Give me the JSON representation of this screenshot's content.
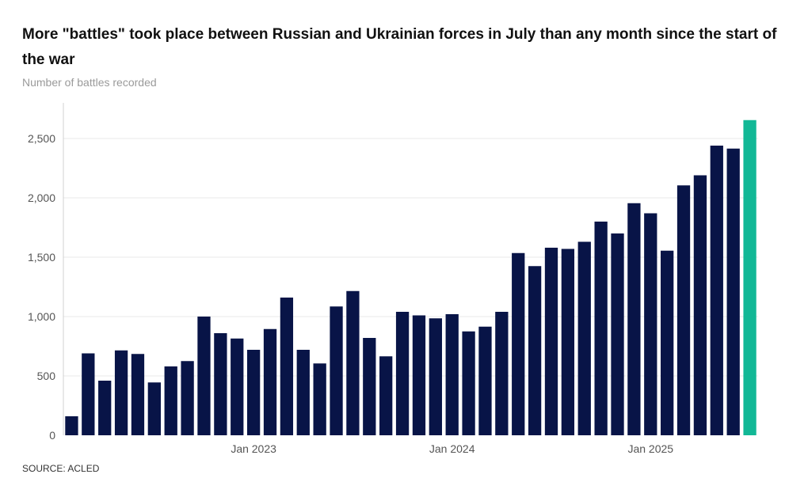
{
  "header": {
    "title": "More \"battles\" took place between Russian and Ukrainian forces in July than any month since the start of the war",
    "subtitle": "Number of battles recorded"
  },
  "footer": {
    "source": "SOURCE: ACLED"
  },
  "colors": {
    "bar": "#081447",
    "highlight": "#12b896",
    "gridline": "#e8e8e8",
    "axis_line": "#d0d0d0"
  },
  "chart_data": {
    "type": "bar",
    "title": "More \"battles\" took place between Russian and Ukrainian forces in July than any month since the start of the war",
    "subtitle": "Number of battles recorded",
    "xlabel": "",
    "ylabel": "",
    "ylim": [
      0,
      2750
    ],
    "yticks": [
      0,
      500,
      1000,
      1500,
      2000,
      2500
    ],
    "ytick_labels": [
      "0",
      "500",
      "1,000",
      "1,500",
      "2,000",
      "2,500"
    ],
    "x_tick_labels": [
      {
        "label": "Jan 2023",
        "index": 11
      },
      {
        "label": "Jan 2024",
        "index": 23
      },
      {
        "label": "Jan 2025",
        "index": 35
      }
    ],
    "grid": true,
    "categories": [
      "Feb 2022",
      "Mar 2022",
      "Apr 2022",
      "May 2022",
      "Jun 2022",
      "Jul 2022",
      "Aug 2022",
      "Sep 2022",
      "Oct 2022",
      "Nov 2022",
      "Dec 2022",
      "Jan 2023",
      "Feb 2023",
      "Mar 2023",
      "Apr 2023",
      "May 2023",
      "Jun 2023",
      "Jul 2023",
      "Aug 2023",
      "Sep 2023",
      "Oct 2023",
      "Nov 2023",
      "Dec 2023",
      "Jan 2024",
      "Feb 2024",
      "Mar 2024",
      "Apr 2024",
      "May 2024",
      "Jun 2024",
      "Jul 2024",
      "Aug 2024",
      "Sep 2024",
      "Oct 2024",
      "Nov 2024",
      "Dec 2024",
      "Jan 2025",
      "Feb 2025",
      "Mar 2025",
      "Apr 2025",
      "May 2025",
      "Jun 2025",
      "Jul 2025"
    ],
    "values": [
      160,
      690,
      460,
      715,
      685,
      445,
      580,
      625,
      1000,
      860,
      815,
      720,
      895,
      1160,
      720,
      605,
      1085,
      1215,
      820,
      665,
      1040,
      1010,
      985,
      1020,
      875,
      915,
      1040,
      1535,
      1425,
      1580,
      1570,
      1630,
      1800,
      1700,
      1955,
      1870,
      1555,
      2105,
      2190,
      2440,
      2415,
      2655
    ],
    "highlight_index": 41
  }
}
